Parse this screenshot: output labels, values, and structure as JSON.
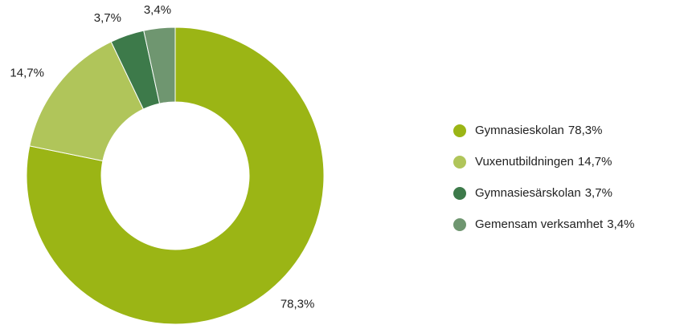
{
  "chart_data": {
    "type": "donut",
    "categories": [
      "Gymnasieskolan",
      "Vuxenutbildningen",
      "Gymnasiesärskolan",
      "Gemensam verksamhet"
    ],
    "values": [
      78.3,
      14.7,
      3.7,
      3.4
    ],
    "value_labels": [
      "78,3%",
      "14,7%",
      "3,7%",
      "3,4%"
    ],
    "colors": [
      "#9bb515",
      "#b0c55a",
      "#3d7a4a",
      "#6f9670"
    ],
    "legend": "right"
  }
}
